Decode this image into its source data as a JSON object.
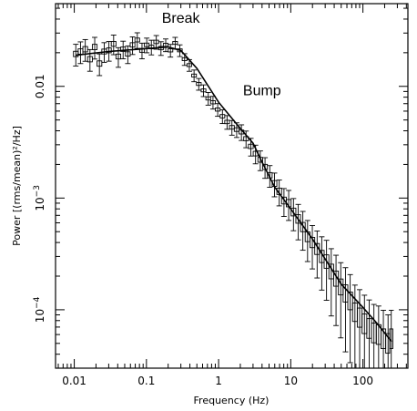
{
  "chart_data": {
    "type": "line",
    "title": "",
    "xlabel": "Frequency (Hz)",
    "ylabel": "Power [(rms/mean)²/Hz]",
    "xscale": "log",
    "yscale": "log",
    "xlim": [
      0.0055,
      420
    ],
    "ylim": [
      3e-05,
      0.055
    ],
    "x_tick_labels": [
      {
        "value": 0.01,
        "label": "0.01"
      },
      {
        "value": 0.1,
        "label": "0.1"
      },
      {
        "value": 1,
        "label": "1"
      },
      {
        "value": 10,
        "label": "10"
      },
      {
        "value": 100,
        "label": "100"
      }
    ],
    "y_tick_labels": [
      {
        "value": 0.0001,
        "base": "10",
        "exp": "−4"
      },
      {
        "value": 0.001,
        "base": "10",
        "exp": "−3"
      },
      {
        "value": 0.01,
        "base": "0.01",
        "exp": ""
      }
    ],
    "annotations": [
      {
        "text": "Break",
        "x": 0.3,
        "y": 0.037
      },
      {
        "text": "Bump",
        "x": 4.0,
        "y": 0.0083
      }
    ],
    "series": [
      {
        "type": "binned",
        "x": [
          0.0105,
          0.0122,
          0.0142,
          0.0165,
          0.0192,
          0.0223,
          0.026,
          0.0302,
          0.0351,
          0.0408,
          0.0475,
          0.0552,
          0.0642,
          0.0747,
          0.0868,
          0.101,
          0.117,
          0.137,
          0.159,
          0.185,
          0.215,
          0.25,
          0.29,
          0.338,
          0.393,
          0.457,
          0.531,
          0.618,
          0.719,
          0.836,
          0.972,
          1.13,
          1.31,
          1.53,
          1.78,
          2.07,
          2.4,
          2.8,
          3.25,
          3.78,
          4.4,
          5.12,
          5.95,
          6.92,
          8.05,
          9.36,
          10.9,
          12.7,
          14.7,
          17.1,
          19.9,
          23.2,
          26.9,
          31.3,
          36.4,
          42.4,
          49.3,
          57.3,
          66.6,
          77.5,
          90.1,
          105,
          122,
          142,
          165,
          192,
          223,
          247
        ],
        "y": [
          0.0195,
          0.0205,
          0.0215,
          0.0175,
          0.0225,
          0.016,
          0.0205,
          0.021,
          0.024,
          0.0185,
          0.0215,
          0.0195,
          0.0235,
          0.026,
          0.021,
          0.0235,
          0.0225,
          0.025,
          0.022,
          0.0235,
          0.021,
          0.0245,
          0.021,
          0.0175,
          0.0155,
          0.0125,
          0.0105,
          0.0092,
          0.0078,
          0.0072,
          0.0062,
          0.0054,
          0.0048,
          0.0043,
          0.0041,
          0.0039,
          0.0034,
          0.0029,
          0.0025,
          0.0022,
          0.0019,
          0.0016,
          0.00135,
          0.00115,
          0.00095,
          0.0009,
          0.00075,
          0.00065,
          0.00055,
          0.00045,
          0.0004,
          0.00035,
          0.0003,
          0.00027,
          0.00022,
          0.00019,
          0.00016,
          0.00014,
          0.00012,
          9.5e-05,
          8.5e-05,
          7.5e-05,
          6.8e-05,
          6.2e-05,
          6e-05,
          5.5e-05,
          5e-05,
          5.5e-05
        ],
        "err_frac": [
          0.22,
          0.22,
          0.22,
          0.22,
          0.22,
          0.22,
          0.2,
          0.2,
          0.2,
          0.2,
          0.18,
          0.18,
          0.18,
          0.16,
          0.16,
          0.15,
          0.15,
          0.14,
          0.14,
          0.13,
          0.13,
          0.12,
          0.12,
          0.12,
          0.12,
          0.12,
          0.12,
          0.12,
          0.13,
          0.13,
          0.13,
          0.14,
          0.14,
          0.15,
          0.15,
          0.16,
          0.17,
          0.18,
          0.19,
          0.2,
          0.21,
          0.22,
          0.24,
          0.26,
          0.28,
          0.3,
          0.32,
          0.35,
          0.38,
          0.4,
          0.42,
          0.45,
          0.5,
          0.55,
          0.6,
          0.62,
          0.65,
          0.7,
          0.72,
          0.75,
          0.78,
          0.8,
          0.8,
          0.8,
          0.8,
          0.8,
          0.8,
          0.8
        ]
      },
      {
        "type": "model",
        "x": [
          0.0105,
          0.03,
          0.1,
          0.2,
          0.3,
          0.5,
          1.0,
          2.0,
          3.0,
          4.0,
          6.0,
          10.0,
          20.0,
          50.0,
          100.0,
          150.0,
          250.0
        ],
        "y": [
          0.019,
          0.0205,
          0.0218,
          0.0225,
          0.021,
          0.0145,
          0.0072,
          0.0042,
          0.0031,
          0.0021,
          0.00125,
          0.0008,
          0.00043,
          0.00017,
          0.000105,
          7.8e-05,
          5.2e-05
        ]
      }
    ]
  }
}
